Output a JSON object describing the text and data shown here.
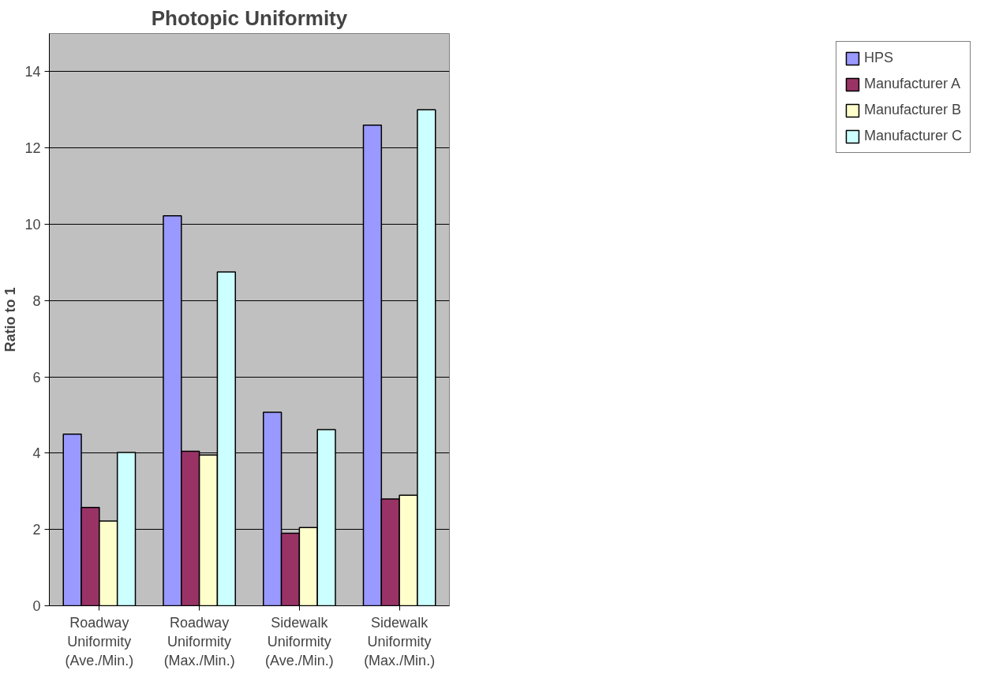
{
  "chart_data": {
    "type": "bar",
    "title": "Photopic Uniformity",
    "ylabel": "Ratio to 1",
    "categories": [
      "Roadway Uniformity (Ave./Min.)",
      "Roadway Uniformity (Max./Min.)",
      "Sidewalk Uniformity (Ave./Min.)",
      "Sidewalk Uniformity (Max./Min.)"
    ],
    "series": [
      {
        "name": "HPS",
        "color": "#9999ff",
        "values": [
          4.5,
          10.22,
          5.07,
          12.6
        ]
      },
      {
        "name": "Manufacturer A",
        "color": "#993366",
        "values": [
          2.58,
          4.05,
          1.9,
          2.8
        ]
      },
      {
        "name": "Manufacturer B",
        "color": "#ffffcc",
        "values": [
          2.22,
          3.95,
          2.05,
          2.9
        ]
      },
      {
        "name": "Manufacturer C",
        "color": "#ccffff",
        "values": [
          4.02,
          8.75,
          4.62,
          13.0
        ]
      }
    ],
    "ylim": [
      0,
      15
    ],
    "yticks": [
      0,
      2,
      4,
      6,
      8,
      10,
      12,
      14
    ],
    "grid": "y",
    "legend": "right"
  }
}
